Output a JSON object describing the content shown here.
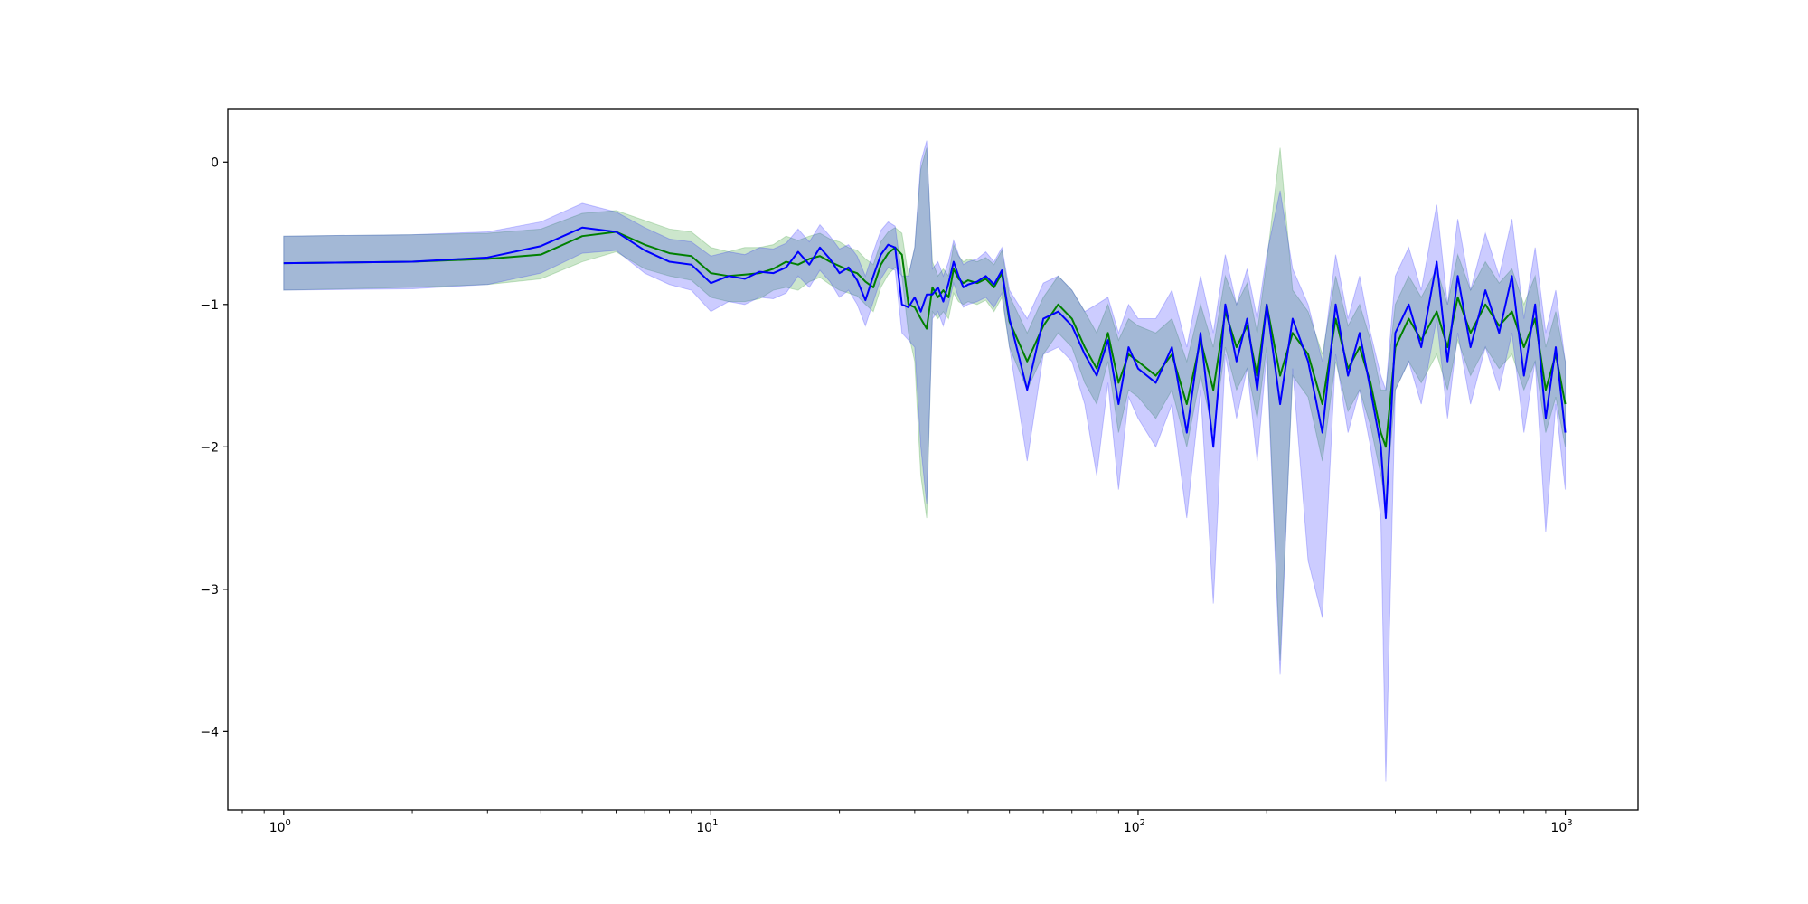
{
  "chart_data": {
    "type": "line",
    "title": "",
    "xlabel": "",
    "ylabel": "",
    "xscale": "log",
    "xlim": [
      0.74,
      1480
    ],
    "ylim": [
      -4.55,
      0.37
    ],
    "grid": false,
    "legend": "none",
    "x_ticks": [
      {
        "value": 1,
        "base": "10",
        "exp": "0"
      },
      {
        "value": 10,
        "base": "10",
        "exp": "1"
      },
      {
        "value": 100,
        "base": "10",
        "exp": "2"
      },
      {
        "value": 1000,
        "base": "10",
        "exp": "3"
      }
    ],
    "y_ticks": [
      {
        "value": 0,
        "label": "0"
      },
      {
        "value": -1,
        "label": "−1"
      },
      {
        "value": -2,
        "label": "−2"
      },
      {
        "value": -3,
        "label": "−3"
      },
      {
        "value": -4,
        "label": "−4"
      }
    ],
    "series": [
      {
        "color": "#008000",
        "band_color": "#008000",
        "band_opacity": 0.2,
        "x": [
          1,
          2,
          3,
          4,
          5,
          6,
          7,
          8,
          9,
          10,
          11,
          12,
          13,
          14,
          15,
          16,
          17,
          18,
          19,
          20,
          21,
          22,
          23,
          24,
          25,
          26,
          27,
          28,
          29,
          30,
          31,
          32,
          33,
          34,
          35,
          36,
          37,
          38,
          39,
          40,
          42,
          44,
          46,
          48,
          50,
          55,
          60,
          65,
          70,
          75,
          80,
          85,
          90,
          95,
          100,
          110,
          120,
          130,
          140,
          150,
          160,
          170,
          180,
          190,
          200,
          215,
          230,
          250,
          270,
          290,
          310,
          330,
          350,
          370,
          380,
          400,
          430,
          460,
          500,
          530,
          560,
          600,
          650,
          700,
          750,
          800,
          850,
          900,
          950,
          1000
        ],
        "y": [
          -0.71,
          -0.7,
          -0.68,
          -0.65,
          -0.52,
          -0.49,
          -0.58,
          -0.64,
          -0.66,
          -0.78,
          -0.8,
          -0.79,
          -0.78,
          -0.75,
          -0.7,
          -0.72,
          -0.68,
          -0.66,
          -0.7,
          -0.73,
          -0.76,
          -0.78,
          -0.84,
          -0.88,
          -0.72,
          -0.64,
          -0.6,
          -0.65,
          -1.0,
          -1.02,
          -1.1,
          -1.17,
          -0.88,
          -0.95,
          -0.9,
          -0.95,
          -0.75,
          -0.82,
          -0.85,
          -0.83,
          -0.85,
          -0.82,
          -0.88,
          -0.78,
          -1.12,
          -1.4,
          -1.15,
          -1.0,
          -1.1,
          -1.3,
          -1.45,
          -1.2,
          -1.55,
          -1.35,
          -1.4,
          -1.5,
          -1.35,
          -1.7,
          -1.25,
          -1.6,
          -1.05,
          -1.3,
          -1.15,
          -1.5,
          -1.0,
          -1.5,
          -1.2,
          -1.35,
          -1.7,
          -1.1,
          -1.45,
          -1.3,
          -1.55,
          -1.9,
          -2.0,
          -1.3,
          -1.1,
          -1.25,
          -1.05,
          -1.3,
          -0.95,
          -1.2,
          -1.0,
          -1.15,
          -1.05,
          -1.3,
          -1.1,
          -1.6,
          -1.35,
          -1.7
        ],
        "lower": [
          -0.9,
          -0.88,
          -0.86,
          -0.82,
          -0.7,
          -0.63,
          -0.75,
          -0.8,
          -0.83,
          -0.95,
          -0.98,
          -0.98,
          -0.96,
          -0.9,
          -0.88,
          -0.9,
          -0.84,
          -0.81,
          -0.86,
          -0.9,
          -0.92,
          -0.94,
          -1.0,
          -1.05,
          -0.88,
          -0.79,
          -0.74,
          -0.8,
          -1.2,
          -1.4,
          -2.2,
          -2.5,
          -1.05,
          -1.1,
          -1.05,
          -1.1,
          -0.92,
          -0.98,
          -1.0,
          -0.98,
          -1.0,
          -0.97,
          -1.05,
          -0.95,
          -1.3,
          -1.6,
          -1.35,
          -1.2,
          -1.3,
          -1.55,
          -1.7,
          -1.4,
          -1.9,
          -1.6,
          -1.65,
          -1.8,
          -1.6,
          -2.0,
          -1.5,
          -1.9,
          -1.3,
          -1.6,
          -1.45,
          -1.8,
          -1.3,
          -3.5,
          -1.5,
          -1.65,
          -2.1,
          -1.4,
          -1.75,
          -1.6,
          -1.85,
          -2.2,
          -2.4,
          -1.6,
          -1.4,
          -1.55,
          -1.35,
          -1.6,
          -1.25,
          -1.5,
          -1.3,
          -1.45,
          -1.35,
          -1.6,
          -1.4,
          -1.9,
          -1.65,
          -2.0
        ],
        "upper": [
          -0.52,
          -0.51,
          -0.5,
          -0.47,
          -0.36,
          -0.34,
          -0.41,
          -0.47,
          -0.49,
          -0.6,
          -0.63,
          -0.6,
          -0.6,
          -0.58,
          -0.52,
          -0.55,
          -0.52,
          -0.5,
          -0.54,
          -0.56,
          -0.6,
          -0.62,
          -0.68,
          -0.72,
          -0.56,
          -0.49,
          -0.46,
          -0.5,
          -0.8,
          -0.6,
          -0.05,
          0.1,
          -0.7,
          -0.8,
          -0.75,
          -0.8,
          -0.58,
          -0.66,
          -0.7,
          -0.68,
          -0.7,
          -0.67,
          -0.72,
          -0.62,
          -0.94,
          -1.2,
          -0.95,
          -0.8,
          -0.9,
          -1.05,
          -1.2,
          -1.0,
          -1.25,
          -1.1,
          -1.15,
          -1.2,
          -1.1,
          -1.4,
          -1.0,
          -1.3,
          -0.8,
          -1.0,
          -0.85,
          -1.2,
          -0.7,
          0.1,
          -0.9,
          -1.05,
          -1.35,
          -0.8,
          -1.15,
          -1.0,
          -1.25,
          -1.6,
          -1.6,
          -1.0,
          -0.8,
          -0.95,
          -0.75,
          -1.0,
          -0.65,
          -0.9,
          -0.7,
          -0.85,
          -0.75,
          -1.0,
          -0.8,
          -1.3,
          -1.05,
          -1.4
        ]
      },
      {
        "color": "#0000ff",
        "band_color": "#0000ff",
        "band_opacity": 0.2,
        "x": [
          1,
          2,
          3,
          4,
          5,
          6,
          7,
          8,
          9,
          10,
          11,
          12,
          13,
          14,
          15,
          16,
          17,
          18,
          19,
          20,
          21,
          22,
          23,
          24,
          25,
          26,
          27,
          28,
          29,
          30,
          31,
          32,
          33,
          34,
          35,
          36,
          37,
          38,
          39,
          40,
          42,
          44,
          46,
          48,
          50,
          55,
          60,
          65,
          70,
          75,
          80,
          85,
          90,
          95,
          100,
          110,
          120,
          130,
          140,
          150,
          160,
          170,
          180,
          190,
          200,
          215,
          230,
          250,
          270,
          290,
          310,
          330,
          350,
          370,
          380,
          400,
          430,
          460,
          500,
          530,
          560,
          600,
          650,
          700,
          750,
          800,
          850,
          900,
          950,
          1000
        ],
        "y": [
          -0.71,
          -0.7,
          -0.67,
          -0.59,
          -0.46,
          -0.49,
          -0.62,
          -0.7,
          -0.72,
          -0.85,
          -0.8,
          -0.82,
          -0.77,
          -0.78,
          -0.74,
          -0.63,
          -0.72,
          -0.6,
          -0.68,
          -0.78,
          -0.74,
          -0.83,
          -0.97,
          -0.8,
          -0.65,
          -0.58,
          -0.6,
          -1.0,
          -1.02,
          -0.95,
          -1.05,
          -0.93,
          -0.93,
          -0.88,
          -0.98,
          -0.85,
          -0.7,
          -0.8,
          -0.88,
          -0.86,
          -0.84,
          -0.8,
          -0.86,
          -0.76,
          -1.1,
          -1.6,
          -1.1,
          -1.05,
          -1.15,
          -1.35,
          -1.5,
          -1.25,
          -1.7,
          -1.3,
          -1.45,
          -1.55,
          -1.3,
          -1.9,
          -1.2,
          -2.0,
          -1.0,
          -1.4,
          -1.1,
          -1.6,
          -1.0,
          -1.7,
          -1.1,
          -1.4,
          -1.9,
          -1.0,
          -1.5,
          -1.2,
          -1.6,
          -2.0,
          -2.5,
          -1.2,
          -1.0,
          -1.3,
          -0.7,
          -1.4,
          -0.8,
          -1.3,
          -0.9,
          -1.2,
          -0.8,
          -1.5,
          -1.0,
          -1.8,
          -1.3,
          -1.9
        ],
        "lower": [
          -0.9,
          -0.89,
          -0.86,
          -0.78,
          -0.64,
          -0.62,
          -0.78,
          -0.86,
          -0.9,
          -1.05,
          -0.98,
          -1.0,
          -0.95,
          -0.96,
          -0.92,
          -0.8,
          -0.88,
          -0.76,
          -0.84,
          -0.95,
          -0.9,
          -1.0,
          -1.15,
          -0.98,
          -0.82,
          -0.74,
          -0.76,
          -1.2,
          -1.25,
          -1.3,
          -2.0,
          -2.4,
          -1.1,
          -1.05,
          -1.15,
          -1.0,
          -0.85,
          -0.95,
          -1.02,
          -1.0,
          -0.98,
          -0.95,
          -1.02,
          -0.92,
          -1.3,
          -2.1,
          -1.35,
          -1.3,
          -1.4,
          -1.7,
          -2.2,
          -1.55,
          -2.3,
          -1.65,
          -1.8,
          -2.0,
          -1.7,
          -2.5,
          -1.6,
          -3.1,
          -1.35,
          -1.8,
          -1.45,
          -2.1,
          -1.35,
          -3.6,
          -1.45,
          -2.8,
          -3.2,
          -1.35,
          -1.9,
          -1.6,
          -2.0,
          -2.5,
          -4.35,
          -1.6,
          -1.4,
          -1.7,
          -1.1,
          -1.8,
          -1.2,
          -1.7,
          -1.3,
          -1.6,
          -1.2,
          -1.9,
          -1.4,
          -2.6,
          -1.7,
          -2.3
        ],
        "upper": [
          -0.52,
          -0.51,
          -0.49,
          -0.42,
          -0.29,
          -0.35,
          -0.46,
          -0.54,
          -0.56,
          -0.66,
          -0.63,
          -0.65,
          -0.6,
          -0.61,
          -0.57,
          -0.47,
          -0.56,
          -0.44,
          -0.52,
          -0.61,
          -0.58,
          -0.66,
          -0.8,
          -0.63,
          -0.48,
          -0.42,
          -0.45,
          -0.8,
          -0.8,
          -0.6,
          0.0,
          0.15,
          -0.75,
          -0.7,
          -0.8,
          -0.7,
          -0.55,
          -0.65,
          -0.72,
          -0.7,
          -0.68,
          -0.63,
          -0.7,
          -0.6,
          -0.9,
          -1.1,
          -0.85,
          -0.8,
          -0.9,
          -1.05,
          -1.0,
          -0.95,
          -1.2,
          -1.0,
          -1.1,
          -1.1,
          -0.9,
          -1.3,
          -0.8,
          -1.2,
          -0.65,
          -1.0,
          -0.75,
          -1.1,
          -0.65,
          -0.2,
          -0.75,
          -1.0,
          -1.4,
          -0.65,
          -1.1,
          -0.8,
          -1.2,
          -1.5,
          -1.6,
          -0.8,
          -0.6,
          -0.9,
          -0.3,
          -1.0,
          -0.4,
          -0.9,
          -0.5,
          -0.8,
          -0.4,
          -1.1,
          -0.6,
          -1.2,
          -0.9,
          -1.4
        ]
      }
    ]
  }
}
